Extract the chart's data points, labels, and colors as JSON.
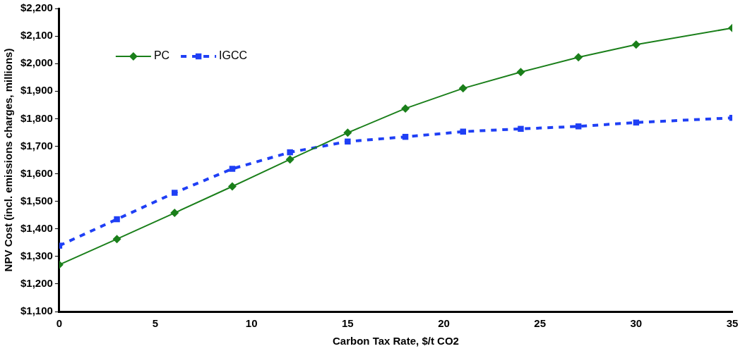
{
  "chart_data": {
    "type": "line",
    "xlabel": "Carbon Tax Rate, $/t CO2",
    "ylabel": "NPV Cost (incl. emissions charges, millions)",
    "x": [
      0,
      3,
      6,
      9,
      12,
      15,
      18,
      21,
      24,
      27,
      30,
      35
    ],
    "series": [
      {
        "name": "PC",
        "color": "#1a7f1a",
        "marker": "diamond",
        "line_style": "solid",
        "values": [
          1270,
          1363,
          1458,
          1554,
          1652,
          1749,
          1837,
          1910,
          1969,
          2023,
          2069,
          2129
        ]
      },
      {
        "name": "IGCC",
        "color": "#1f3ff5",
        "marker": "square",
        "line_style": "dashed",
        "values": [
          1339,
          1435,
          1531,
          1618,
          1678,
          1717,
          1734,
          1753,
          1763,
          1772,
          1786,
          1803
        ]
      }
    ],
    "xlim": [
      0,
      35
    ],
    "xticks": [
      0,
      5,
      10,
      15,
      20,
      25,
      30,
      35
    ],
    "ylim": [
      1100,
      2200
    ],
    "yticks": [
      {
        "value": 1100,
        "label": "$1,100"
      },
      {
        "value": 1200,
        "label": "$1,200"
      },
      {
        "value": 1300,
        "label": "$1,300"
      },
      {
        "value": 1400,
        "label": "$1,400"
      },
      {
        "value": 1500,
        "label": "$1,500"
      },
      {
        "value": 1600,
        "label": "$1,600"
      },
      {
        "value": 1700,
        "label": "$1,700"
      },
      {
        "value": 1800,
        "label": "$1,800"
      },
      {
        "value": 1900,
        "label": "$1,900"
      },
      {
        "value": 2000,
        "label": "$2,000"
      },
      {
        "value": 2100,
        "label": "$2,100"
      },
      {
        "value": 2200,
        "label": "$2,200"
      }
    ],
    "grid": false,
    "legend": "top left"
  }
}
